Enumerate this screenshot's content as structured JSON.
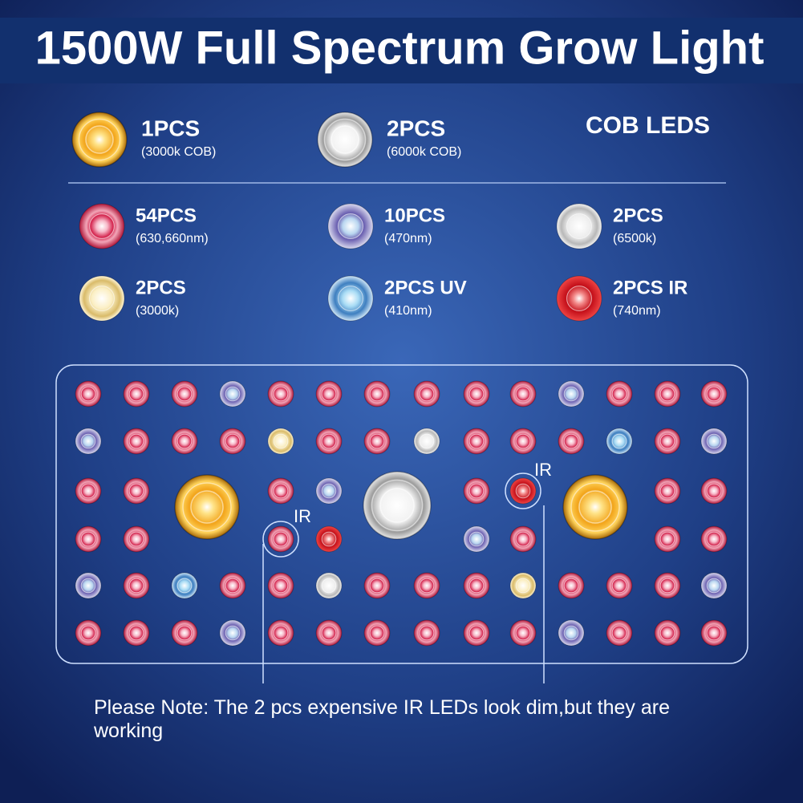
{
  "title": "1500W Full Spectrum Grow Light",
  "cob": {
    "label": "COB LEDS",
    "items": [
      {
        "count": "1PCS",
        "spec": "(3000k COB)"
      },
      {
        "count": "2PCS",
        "spec": "(6000k COB)"
      }
    ]
  },
  "leds": {
    "items": [
      {
        "count": "54PCS",
        "spec": "(630,660nm)"
      },
      {
        "count": "10PCS",
        "spec": "(470nm)"
      },
      {
        "count": "2PCS",
        "spec": "(6500k)"
      },
      {
        "count": "2PCS",
        "spec": "(3000k)"
      },
      {
        "count": "2PCS UV",
        "spec": "(410nm)"
      },
      {
        "count": "2PCS IR",
        "spec": "(740nm)"
      }
    ]
  },
  "panel": {
    "ir_labels": [
      "IR",
      "IR"
    ]
  },
  "note": "Please Note: The 2 pcs expensive IR LEDs look dim,but they are working"
}
